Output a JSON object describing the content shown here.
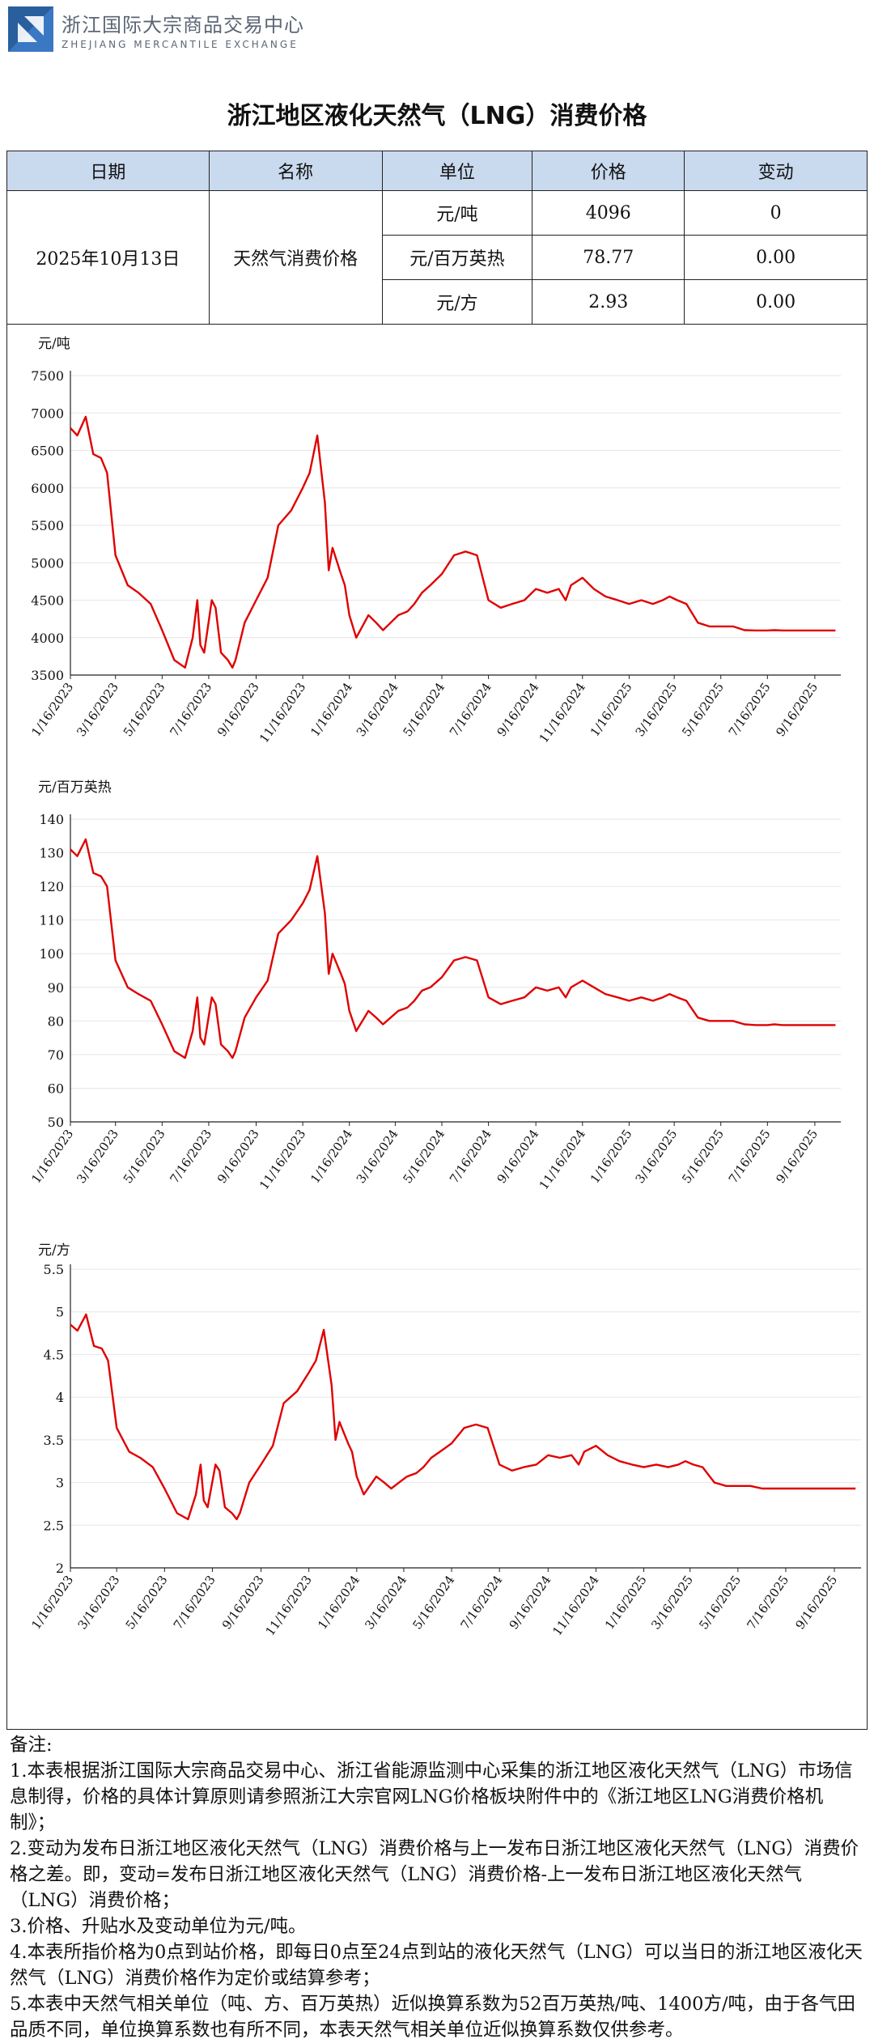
{
  "brand": {
    "name_cn": "浙江国际大宗商品交易中心",
    "name_en": "ZHEJIANG MERCANTILE EXCHANGE",
    "accent": "#3b78c4"
  },
  "title": "浙江地区液化天然气（LNG）消费价格",
  "table": {
    "headers": [
      "日期",
      "名称",
      "单位",
      "价格",
      "变动"
    ],
    "header_bg": "#c9d9ee",
    "date": "2025年10月13日",
    "name": "天然气消费价格",
    "rows": [
      {
        "unit": "元/吨",
        "price": "4096",
        "change": "0"
      },
      {
        "unit": "元/百万英热",
        "price": "78.77",
        "change": "0.00"
      },
      {
        "unit": "元/方",
        "price": "2.93",
        "change": "0.00"
      }
    ]
  },
  "chart_data": [
    {
      "type": "line",
      "unit_label": "元/吨",
      "color": "#e00000",
      "ylim": [
        3500,
        7500
      ],
      "yticks": [
        "3500",
        "4000",
        "4500",
        "5000",
        "5500",
        "6000",
        "6500",
        "7000",
        "7500"
      ],
      "xticks": [
        "1/16/2023",
        "3/16/2023",
        "5/16/2023",
        "7/16/2023",
        "9/16/2023",
        "11/16/2023",
        "1/16/2024",
        "3/16/2024",
        "5/16/2024",
        "7/16/2024",
        "9/16/2024",
        "11/16/2024",
        "1/16/2025",
        "3/16/2025",
        "5/16/2025",
        "7/16/2025",
        "9/16/2025"
      ],
      "grid": true,
      "series": [
        {
          "name": "",
          "x": [
            "2023-01-16",
            "2023-01-25",
            "2023-02-05",
            "2023-02-15",
            "2023-02-25",
            "2023-03-05",
            "2023-03-16",
            "2023-04-01",
            "2023-04-15",
            "2023-05-01",
            "2023-05-16",
            "2023-06-01",
            "2023-06-15",
            "2023-06-25",
            "2023-07-01",
            "2023-07-05",
            "2023-07-10",
            "2023-07-20",
            "2023-07-25",
            "2023-08-01",
            "2023-08-10",
            "2023-08-16",
            "2023-08-20",
            "2023-09-01",
            "2023-09-16",
            "2023-10-01",
            "2023-10-15",
            "2023-11-01",
            "2023-11-16",
            "2023-11-25",
            "2023-12-05",
            "2023-12-15",
            "2023-12-20",
            "2023-12-25",
            "2024-01-05",
            "2024-01-10",
            "2024-01-16",
            "2024-01-25",
            "2024-02-10",
            "2024-02-20",
            "2024-02-29",
            "2024-03-10",
            "2024-03-20",
            "2024-04-01",
            "2024-04-10",
            "2024-04-20",
            "2024-05-01",
            "2024-05-16",
            "2024-06-01",
            "2024-06-16",
            "2024-07-01",
            "2024-07-16",
            "2024-08-01",
            "2024-08-16",
            "2024-09-01",
            "2024-09-16",
            "2024-10-01",
            "2024-10-16",
            "2024-10-25",
            "2024-11-01",
            "2024-11-16",
            "2024-12-01",
            "2024-12-16",
            "2025-01-01",
            "2025-01-16",
            "2025-02-01",
            "2025-02-16",
            "2025-03-01",
            "2025-03-10",
            "2025-03-20",
            "2025-04-01",
            "2025-04-16",
            "2025-05-01",
            "2025-05-16",
            "2025-06-01",
            "2025-06-16",
            "2025-07-01",
            "2025-07-16",
            "2025-07-25",
            "2025-08-05",
            "2025-08-16",
            "2025-09-01",
            "2025-09-16",
            "2025-10-01",
            "2025-10-13"
          ],
          "y": [
            6800,
            6700,
            6950,
            6450,
            6400,
            6200,
            5100,
            4700,
            4600,
            4450,
            4100,
            3700,
            3600,
            4000,
            4500,
            3900,
            3800,
            4500,
            4400,
            3800,
            3700,
            3600,
            3700,
            4200,
            4500,
            4800,
            5500,
            5700,
            6000,
            6200,
            6700,
            5800,
            4900,
            5200,
            4850,
            4700,
            4300,
            4000,
            4300,
            4200,
            4100,
            4200,
            4300,
            4350,
            4450,
            4600,
            4700,
            4850,
            5100,
            5150,
            5100,
            4500,
            4400,
            4450,
            4500,
            4650,
            4600,
            4650,
            4500,
            4700,
            4800,
            4650,
            4550,
            4500,
            4450,
            4500,
            4450,
            4500,
            4550,
            4500,
            4450,
            4200,
            4150,
            4150,
            4150,
            4100,
            4096,
            4096,
            4100,
            4096,
            4096,
            4096,
            4096,
            4096,
            4096
          ]
        }
      ]
    },
    {
      "type": "line",
      "unit_label": "元/百万英热",
      "color": "#e00000",
      "ylim": [
        50,
        140
      ],
      "yticks": [
        "50",
        "60",
        "70",
        "80",
        "90",
        "100",
        "110",
        "120",
        "130",
        "140"
      ],
      "xticks": [
        "1/16/2023",
        "3/16/2023",
        "5/16/2023",
        "7/16/2023",
        "9/16/2023",
        "11/16/2023",
        "1/16/2024",
        "3/16/2024",
        "5/16/2024",
        "7/16/2024",
        "9/16/2024",
        "11/16/2024",
        "1/16/2025",
        "3/16/2025",
        "5/16/2025",
        "7/16/2025",
        "9/16/2025"
      ],
      "grid": true,
      "series": [
        {
          "name": "",
          "x": [
            "2023-01-16",
            "2023-01-25",
            "2023-02-05",
            "2023-02-15",
            "2023-02-25",
            "2023-03-05",
            "2023-03-16",
            "2023-04-01",
            "2023-04-15",
            "2023-05-01",
            "2023-05-16",
            "2023-06-01",
            "2023-06-15",
            "2023-06-25",
            "2023-07-01",
            "2023-07-05",
            "2023-07-10",
            "2023-07-20",
            "2023-07-25",
            "2023-08-01",
            "2023-08-10",
            "2023-08-16",
            "2023-08-20",
            "2023-09-01",
            "2023-09-16",
            "2023-10-01",
            "2023-10-15",
            "2023-11-01",
            "2023-11-16",
            "2023-11-25",
            "2023-12-05",
            "2023-12-15",
            "2023-12-20",
            "2023-12-25",
            "2024-01-05",
            "2024-01-10",
            "2024-01-16",
            "2024-01-25",
            "2024-02-10",
            "2024-02-20",
            "2024-02-29",
            "2024-03-10",
            "2024-03-20",
            "2024-04-01",
            "2024-04-10",
            "2024-04-20",
            "2024-05-01",
            "2024-05-16",
            "2024-06-01",
            "2024-06-16",
            "2024-07-01",
            "2024-07-16",
            "2024-08-01",
            "2024-08-16",
            "2024-09-01",
            "2024-09-16",
            "2024-10-01",
            "2024-10-16",
            "2024-10-25",
            "2024-11-01",
            "2024-11-16",
            "2024-12-01",
            "2024-12-16",
            "2025-01-01",
            "2025-01-16",
            "2025-02-01",
            "2025-02-16",
            "2025-03-01",
            "2025-03-10",
            "2025-03-20",
            "2025-04-01",
            "2025-04-16",
            "2025-05-01",
            "2025-05-16",
            "2025-06-01",
            "2025-06-16",
            "2025-07-01",
            "2025-07-16",
            "2025-07-25",
            "2025-08-05",
            "2025-08-16",
            "2025-09-01",
            "2025-09-16",
            "2025-10-01",
            "2025-10-13"
          ],
          "y": [
            131,
            129,
            134,
            124,
            123,
            120,
            98,
            90,
            88,
            86,
            79,
            71,
            69,
            77,
            87,
            75,
            73,
            87,
            85,
            73,
            71,
            69,
            71,
            81,
            87,
            92,
            106,
            110,
            115,
            119,
            129,
            112,
            94,
            100,
            94,
            91,
            83,
            77,
            83,
            81,
            79,
            81,
            83,
            84,
            86,
            89,
            90,
            93,
            98,
            99,
            98,
            87,
            85,
            86,
            87,
            90,
            89,
            90,
            87,
            90,
            92,
            90,
            88,
            87,
            86,
            87,
            86,
            87,
            88,
            87,
            86,
            81,
            80,
            80,
            80,
            79,
            78.77,
            78.77,
            79,
            78.77,
            78.77,
            78.77,
            78.77,
            78.77,
            78.77
          ]
        }
      ]
    },
    {
      "type": "line",
      "unit_label": "元/方",
      "color": "#e00000",
      "ylim": [
        2,
        5.5
      ],
      "yticks": [
        "2",
        "2.5",
        "3",
        "3.5",
        "4",
        "4.5",
        "5",
        "5.5"
      ],
      "xticks": [
        "1/16/2023",
        "3/16/2023",
        "5/16/2023",
        "7/16/2023",
        "9/16/2023",
        "11/16/2023",
        "1/16/2024",
        "3/16/2024",
        "5/16/2024",
        "7/16/2024",
        "9/16/2024",
        "11/16/2024",
        "1/16/2025",
        "3/16/2025",
        "5/16/2025",
        "7/16/2025",
        "9/16/2025"
      ],
      "grid": true,
      "series": [
        {
          "name": "",
          "x": [
            "2023-01-16",
            "2023-01-25",
            "2023-02-05",
            "2023-02-15",
            "2023-02-25",
            "2023-03-05",
            "2023-03-16",
            "2023-04-01",
            "2023-04-15",
            "2023-05-01",
            "2023-05-16",
            "2023-06-01",
            "2023-06-15",
            "2023-06-25",
            "2023-07-01",
            "2023-07-05",
            "2023-07-10",
            "2023-07-20",
            "2023-07-25",
            "2023-08-01",
            "2023-08-10",
            "2023-08-16",
            "2023-08-20",
            "2023-09-01",
            "2023-09-16",
            "2023-10-01",
            "2023-10-15",
            "2023-11-01",
            "2023-11-16",
            "2023-11-25",
            "2023-12-05",
            "2023-12-15",
            "2023-12-20",
            "2023-12-25",
            "2024-01-05",
            "2024-01-10",
            "2024-01-16",
            "2024-01-25",
            "2024-02-10",
            "2024-02-20",
            "2024-02-29",
            "2024-03-10",
            "2024-03-20",
            "2024-04-01",
            "2024-04-10",
            "2024-04-20",
            "2024-05-01",
            "2024-05-16",
            "2024-06-01",
            "2024-06-16",
            "2024-07-01",
            "2024-07-16",
            "2024-08-01",
            "2024-08-16",
            "2024-09-01",
            "2024-09-16",
            "2024-10-01",
            "2024-10-16",
            "2024-10-25",
            "2024-11-01",
            "2024-11-16",
            "2024-12-01",
            "2024-12-16",
            "2025-01-01",
            "2025-01-16",
            "2025-02-01",
            "2025-02-16",
            "2025-03-01",
            "2025-03-10",
            "2025-03-20",
            "2025-04-01",
            "2025-04-16",
            "2025-05-01",
            "2025-05-16",
            "2025-06-01",
            "2025-06-16",
            "2025-07-01",
            "2025-07-16",
            "2025-07-25",
            "2025-08-05",
            "2025-08-16",
            "2025-09-01",
            "2025-09-16",
            "2025-10-01",
            "2025-10-13"
          ],
          "y": [
            4.85,
            4.78,
            4.97,
            4.6,
            4.57,
            4.43,
            3.64,
            3.36,
            3.29,
            3.18,
            2.93,
            2.64,
            2.57,
            2.86,
            3.21,
            2.79,
            2.71,
            3.21,
            3.14,
            2.71,
            2.64,
            2.57,
            2.64,
            3.0,
            3.21,
            3.43,
            3.93,
            4.07,
            4.29,
            4.43,
            4.79,
            4.14,
            3.5,
            3.71,
            3.46,
            3.36,
            3.07,
            2.86,
            3.07,
            3.0,
            2.93,
            3.0,
            3.07,
            3.11,
            3.18,
            3.29,
            3.36,
            3.46,
            3.64,
            3.68,
            3.64,
            3.21,
            3.14,
            3.18,
            3.21,
            3.32,
            3.29,
            3.32,
            3.21,
            3.36,
            3.43,
            3.32,
            3.25,
            3.21,
            3.18,
            3.21,
            3.18,
            3.21,
            3.25,
            3.21,
            3.18,
            3.0,
            2.96,
            2.96,
            2.96,
            2.93,
            2.93,
            2.93,
            2.93,
            2.93,
            2.93,
            2.93,
            2.93,
            2.93,
            2.93
          ]
        }
      ]
    }
  ],
  "notes": {
    "heading": "备注:",
    "items": [
      "1.本表根据浙江国际大宗商品交易中心、浙江省能源监测中心采集的浙江地区液化天然气（LNG）市场信息制得，价格的具体计算原则请参照浙江大宗官网LNG价格板块附件中的《浙江地区LNG消费价格机制》；",
      "2.变动为发布日浙江地区液化天然气（LNG）消费价格与上一发布日浙江地区液化天然气（LNG）消费价格之差。即，变动=发布日浙江地区液化天然气（LNG）消费价格-上一发布日浙江地区液化天然气（LNG）消费价格；",
      "3.价格、升贴水及变动单位为元/吨。",
      "4.本表所指价格为0点到站价格，即每日0点至24点到站的液化天然气（LNG）可以当日的浙江地区液化天然气（LNG）消费价格作为定价或结算参考；",
      "5.本表中天然气相关单位（吨、方、百万英热）近似换算系数为52百万英热/吨、1400方/吨，由于各气田品质不同，单位换算系数也有所不同，本表天然气相关单位近似换算系数仅供参考。"
    ]
  }
}
